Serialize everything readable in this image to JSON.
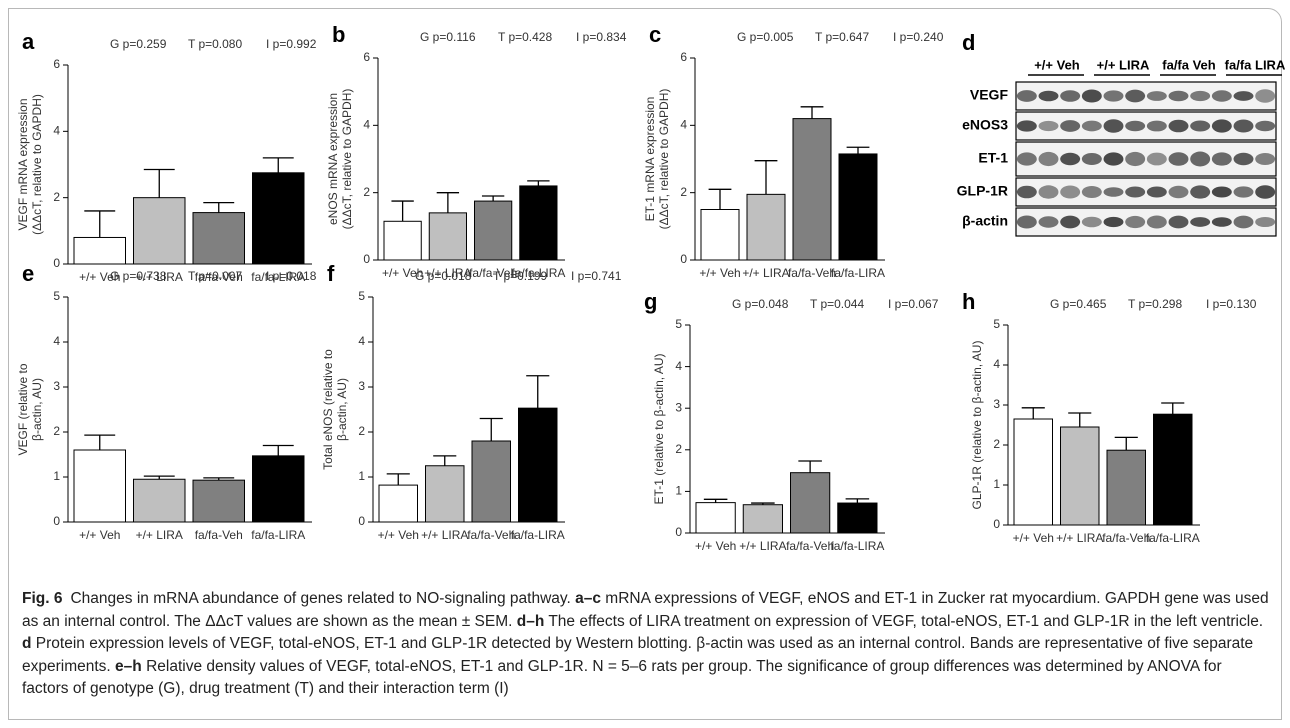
{
  "chart_data": [
    {
      "type": "bar",
      "panel": "a",
      "stats": [
        "G p=0.259",
        "T p=0.080",
        "I p=0.992"
      ],
      "ylabel": [
        "VEGF mRNA expression",
        "(ΔΔcT, relative to GAPDH)"
      ],
      "categories": [
        "+/+ Veh",
        "+/+ LIRA",
        "fa/fa-Veh",
        "fa/fa-LIRA"
      ],
      "values": [
        0.8,
        2.0,
        1.55,
        2.75
      ],
      "errors": [
        0.8,
        0.85,
        0.3,
        0.45
      ],
      "colors": [
        "#ffffff",
        "#bfbfbf",
        "#808080",
        "#000000"
      ],
      "ylim": [
        0,
        6
      ],
      "yticks": [
        0,
        2,
        4,
        6
      ]
    },
    {
      "type": "bar",
      "panel": "b",
      "stats": [
        "G p=0.116",
        "T p=0.428",
        "I p=0.834"
      ],
      "ylabel": [
        "eNOS mRNA expression",
        "(ΔΔcT, relative to GAPDH)"
      ],
      "categories": [
        "+/+ Veh",
        "+/+ LIRA",
        "fa/fa-Veh",
        "fa/fa-LIRA"
      ],
      "values": [
        1.15,
        1.4,
        1.75,
        2.2
      ],
      "errors": [
        0.6,
        0.6,
        0.15,
        0.15
      ],
      "colors": [
        "#ffffff",
        "#bfbfbf",
        "#808080",
        "#000000"
      ],
      "ylim": [
        0,
        6
      ],
      "yticks": [
        0,
        2,
        4,
        6
      ]
    },
    {
      "type": "bar",
      "panel": "c",
      "stats": [
        "G p=0.005",
        "T p=0.647",
        "I p=0.240"
      ],
      "ylabel": [
        "ET-1 mRNA expression",
        "(ΔΔcT, relative to GAPDH)"
      ],
      "categories": [
        "+/+ Veh",
        "+/+ LIRA",
        "fa/fa-Veh",
        "fa/fa-LIRA"
      ],
      "values": [
        1.5,
        1.95,
        4.2,
        3.15
      ],
      "errors": [
        0.6,
        1.0,
        0.35,
        0.2
      ],
      "colors": [
        "#ffffff",
        "#bfbfbf",
        "#808080",
        "#000000"
      ],
      "ylim": [
        0,
        6
      ],
      "yticks": [
        0,
        2,
        4,
        6
      ]
    },
    {
      "type": "bar",
      "panel": "e",
      "stats": [
        "G p=0.738",
        "T p=0.007",
        "I p=0.018"
      ],
      "ylabel": [
        "VEGF (relative to",
        "β-actin, AU)"
      ],
      "categories": [
        "+/+ Veh",
        "+/+ LIRA",
        "fa/fa-Veh",
        "fa/fa-LIRA"
      ],
      "values": [
        1.6,
        0.95,
        0.93,
        1.47
      ],
      "errors": [
        0.33,
        0.07,
        0.05,
        0.23
      ],
      "colors": [
        "#ffffff",
        "#bfbfbf",
        "#808080",
        "#000000"
      ],
      "ylim": [
        0,
        5
      ],
      "yticks": [
        0,
        1,
        2,
        3,
        4,
        5
      ]
    },
    {
      "type": "bar",
      "panel": "f",
      "stats": [
        "G p=0.018",
        "T p=0.199",
        "I p=0.741"
      ],
      "ylabel": [
        "Total eNOS (relative to",
        "β-actin, AU)"
      ],
      "categories": [
        "+/+ Veh",
        "+/+ LIRA",
        "fa/fa-Veh",
        "fa/fa-LIRA"
      ],
      "values": [
        0.82,
        1.25,
        1.8,
        2.53
      ],
      "errors": [
        0.25,
        0.22,
        0.5,
        0.72
      ],
      "colors": [
        "#ffffff",
        "#bfbfbf",
        "#808080",
        "#000000"
      ],
      "ylim": [
        0,
        5
      ],
      "yticks": [
        0,
        1,
        2,
        3,
        4,
        5
      ]
    },
    {
      "type": "bar",
      "panel": "g",
      "stats": [
        "G p=0.048",
        "T p=0.044",
        "I p=0.067"
      ],
      "ylabel": [
        "ET-1 (relative to β-actin, AU)"
      ],
      "categories": [
        "+/+ Veh",
        "+/+ LIRA",
        "fa/fa-Veh",
        "fa/fa-LIRA"
      ],
      "values": [
        0.73,
        0.68,
        1.45,
        0.72
      ],
      "errors": [
        0.08,
        0.04,
        0.28,
        0.1
      ],
      "colors": [
        "#ffffff",
        "#bfbfbf",
        "#808080",
        "#000000"
      ],
      "ylim": [
        0,
        5
      ],
      "yticks": [
        0,
        1,
        2,
        3,
        4,
        5
      ]
    },
    {
      "type": "bar",
      "panel": "h",
      "stats": [
        "G p=0.465",
        "T p=0.298",
        "I p=0.130"
      ],
      "ylabel": [
        "GLP-1R (relative to β-actin, AU)"
      ],
      "categories": [
        "+/+ Veh",
        "+/+ LIRA",
        "fa/fa-Veh",
        "fa/fa-LIRA"
      ],
      "values": [
        2.65,
        2.45,
        1.87,
        2.77
      ],
      "errors": [
        0.28,
        0.35,
        0.32,
        0.28
      ],
      "colors": [
        "#ffffff",
        "#bfbfbf",
        "#808080",
        "#000000"
      ],
      "ylim": [
        0,
        5
      ],
      "yticks": [
        0,
        1,
        2,
        3,
        4,
        5
      ]
    }
  ],
  "blot": {
    "panel": "d",
    "groups": [
      "+/+ Veh",
      "+/+ LIRA",
      "fa/fa Veh",
      "fa/fa LIRA"
    ],
    "rows": [
      "VEGF",
      "eNOS3",
      "ET-1",
      "GLP-1R",
      "β-actin"
    ]
  },
  "caption": {
    "label": "Fig. 6",
    "parts": [
      {
        "text": "Changes in mRNA abundance of genes related to NO-signaling pathway. ",
        "bold": false
      },
      {
        "text": "a–c",
        "bold": true
      },
      {
        "text": " mRNA expressions of VEGF, eNOS and ET-1 in Zucker rat myocardium. GAPDH gene was used as an internal control. The ΔΔcT values are shown as the mean ± SEM. ",
        "bold": false
      },
      {
        "text": "d–h",
        "bold": true
      },
      {
        "text": " The effects of LIRA treatment on expression of VEGF, total-eNOS, ET-1 and GLP-1R in the left ventricle. ",
        "bold": false
      },
      {
        "text": "d",
        "bold": true
      },
      {
        "text": " Protein expression levels of VEGF, total-eNOS, ET-1 and GLP-1R detected by Western blotting. β-actin was used as an internal control. Bands are representative of five separate experiments. ",
        "bold": false
      },
      {
        "text": "e–h",
        "bold": true
      },
      {
        "text": " Relative density values of VEGF, total-eNOS, ET-1 and GLP-1R. N = 5–6 rats per group. The significance of group differences was determined by ANOVA for factors of genotype (G), drug treatment (T) and their interaction term (I)",
        "bold": false
      }
    ]
  }
}
